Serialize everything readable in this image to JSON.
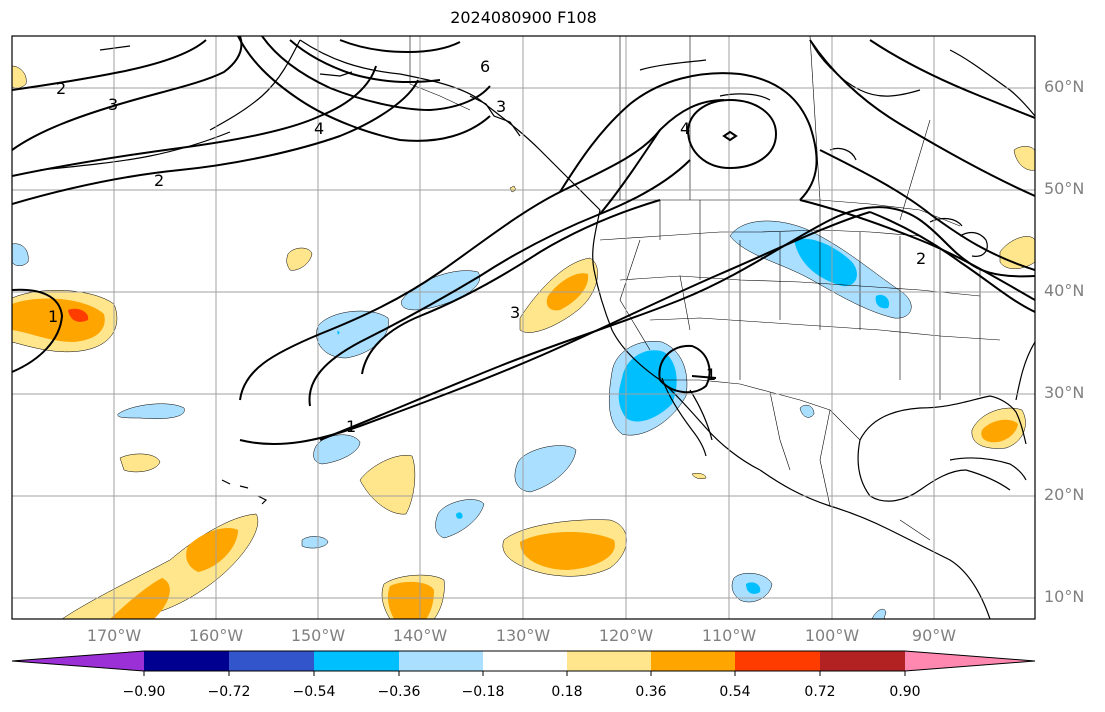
{
  "title": "2024080900 F108",
  "lat_labels": [
    "60°N",
    "50°N",
    "40°N",
    "30°N",
    "20°N",
    "10°N"
  ],
  "lon_labels": [
    "170°W",
    "160°W",
    "150°W",
    "140°W",
    "130°W",
    "120°W",
    "110°W",
    "100°W",
    "90°W"
  ],
  "contour_labels": [
    "2",
    "3",
    "4",
    "2",
    "6",
    "3",
    "4",
    "2",
    "3",
    "1",
    "1",
    "1"
  ],
  "colorbar": {
    "ticks": [
      "−0.90",
      "−0.72",
      "−0.54",
      "−0.36",
      "−0.18",
      "0.18",
      "0.36",
      "0.54",
      "0.72",
      "0.90"
    ],
    "colors": [
      "#9b30d6",
      "#000090",
      "#3355cc",
      "#00bfff",
      "#aadfff",
      "#ffffff",
      "#ffe68c",
      "#ffa500",
      "#ff3c00",
      "#b22222",
      "#ff88b0"
    ]
  },
  "colors": {
    "neg_light": "#aadfff",
    "neg_mid": "#00bfff",
    "pos_light": "#ffe68c",
    "pos_mid": "#ffa500",
    "pos_high": "#ff3c00"
  }
}
